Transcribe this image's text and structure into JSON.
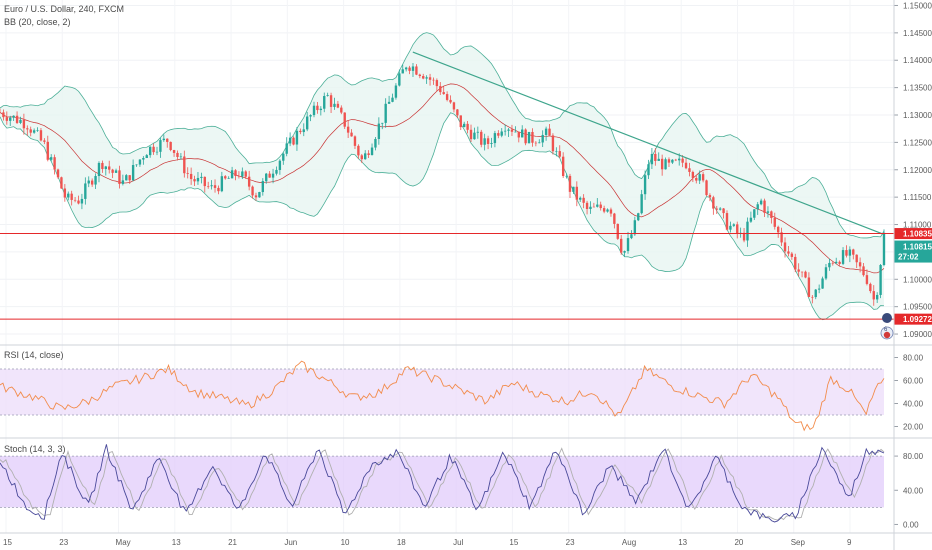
{
  "colors": {
    "up": "#26a69a",
    "down": "#ef5350",
    "bb_band": "#4caf98",
    "bb_mid": "#c83232",
    "bb_fill": "#e7f5f1",
    "trendline": "#3ea58c",
    "hline": "#e5282a",
    "price_tag_green": "#26a69a",
    "rsi_line": "#f28c4c",
    "rsi_fill": "#ecdcfa",
    "stoch_fill": "#e2ccfb",
    "stoch_k": "#4a4a9a",
    "stoch_d": "#b0b0b0"
  },
  "chart_data": [
    {
      "type": "candlestick",
      "title": "Euro / U.S. Dollar, 240, FXCM",
      "indicator": "BB (20, close, 2)",
      "x_tick_labels": [
        "15",
        "23",
        "May",
        "13",
        "21",
        "Jun",
        "10",
        "18",
        "Jul",
        "15",
        "23",
        "Aug",
        "13",
        "20",
        "Sep",
        "9"
      ],
      "y_tick_labels": [
        "1.15000",
        "1.14500",
        "1.14000",
        "1.13500",
        "1.13000",
        "1.12500",
        "1.12000",
        "1.11500",
        "1.11000",
        "1.10500",
        "1.10000",
        "1.09500",
        "1.09000"
      ],
      "ylim": [
        1.088,
        1.151
      ],
      "price_path": [
        {
          "t": 0,
          "v": 1.1305
        },
        {
          "t": 0.03,
          "v": 1.1285
        },
        {
          "t": 0.05,
          "v": 1.1245
        },
        {
          "t": 0.075,
          "v": 1.1145
        },
        {
          "t": 0.09,
          "v": 1.1145
        },
        {
          "t": 0.115,
          "v": 1.1215
        },
        {
          "t": 0.14,
          "v": 1.1175
        },
        {
          "t": 0.165,
          "v": 1.1235
        },
        {
          "t": 0.19,
          "v": 1.1255
        },
        {
          "t": 0.215,
          "v": 1.1185
        },
        {
          "t": 0.24,
          "v": 1.1165
        },
        {
          "t": 0.27,
          "v": 1.1195
        },
        {
          "t": 0.29,
          "v": 1.1155
        },
        {
          "t": 0.31,
          "v": 1.1205
        },
        {
          "t": 0.34,
          "v": 1.1275
        },
        {
          "t": 0.37,
          "v": 1.1335
        },
        {
          "t": 0.39,
          "v": 1.1285
        },
        {
          "t": 0.41,
          "v": 1.1215
        },
        {
          "t": 0.43,
          "v": 1.1285
        },
        {
          "t": 0.46,
          "v": 1.1395
        },
        {
          "t": 0.48,
          "v": 1.1375
        },
        {
          "t": 0.5,
          "v": 1.1345
        },
        {
          "t": 0.52,
          "v": 1.1285
        },
        {
          "t": 0.55,
          "v": 1.1245
        },
        {
          "t": 0.57,
          "v": 1.1285
        },
        {
          "t": 0.6,
          "v": 1.1255
        },
        {
          "t": 0.62,
          "v": 1.1265
        },
        {
          "t": 0.645,
          "v": 1.1165
        },
        {
          "t": 0.665,
          "v": 1.1125
        },
        {
          "t": 0.69,
          "v": 1.1135
        },
        {
          "t": 0.705,
          "v": 1.1045
        },
        {
          "t": 0.72,
          "v": 1.1105
        },
        {
          "t": 0.735,
          "v": 1.1225
        },
        {
          "t": 0.755,
          "v": 1.1205
        },
        {
          "t": 0.775,
          "v": 1.1215
        },
        {
          "t": 0.795,
          "v": 1.1175
        },
        {
          "t": 0.82,
          "v": 1.1105
        },
        {
          "t": 0.84,
          "v": 1.1075
        },
        {
          "t": 0.86,
          "v": 1.1145
        },
        {
          "t": 0.88,
          "v": 1.1085
        },
        {
          "t": 0.9,
          "v": 1.1025
        },
        {
          "t": 0.92,
          "v": 1.0965
        },
        {
          "t": 0.94,
          "v": 1.1035
        },
        {
          "t": 0.96,
          "v": 1.1045
        },
        {
          "t": 0.98,
          "v": 1.1005
        },
        {
          "t": 0.99,
          "v": 1.0955
        },
        {
          "t": 1.0,
          "v": 1.1081
        }
      ],
      "horizontal_lines": [
        1.10835,
        1.09272
      ],
      "trendline": [
        {
          "t": 0.467,
          "v": 1.1415
        },
        {
          "t": 1.0,
          "v": 1.1082
        }
      ],
      "price_labels": {
        "hline_top": "1.10835",
        "last_price": "1.10815",
        "countdown": "27:02",
        "hline_bottom": "1.09272"
      }
    },
    {
      "type": "line",
      "title": "RSI (14, close)",
      "y_tick_labels": [
        "80.00",
        "60.00",
        "40.00",
        "20.00"
      ],
      "ylim": [
        10,
        90
      ],
      "band": [
        30,
        70
      ],
      "path": [
        {
          "t": 0,
          "v": 55
        },
        {
          "t": 0.04,
          "v": 45
        },
        {
          "t": 0.07,
          "v": 35
        },
        {
          "t": 0.1,
          "v": 42
        },
        {
          "t": 0.13,
          "v": 55
        },
        {
          "t": 0.16,
          "v": 62
        },
        {
          "t": 0.19,
          "v": 70
        },
        {
          "t": 0.22,
          "v": 50
        },
        {
          "t": 0.25,
          "v": 45
        },
        {
          "t": 0.28,
          "v": 38
        },
        {
          "t": 0.31,
          "v": 52
        },
        {
          "t": 0.34,
          "v": 74
        },
        {
          "t": 0.37,
          "v": 60
        },
        {
          "t": 0.4,
          "v": 45
        },
        {
          "t": 0.43,
          "v": 50
        },
        {
          "t": 0.46,
          "v": 70
        },
        {
          "t": 0.49,
          "v": 62
        },
        {
          "t": 0.52,
          "v": 52
        },
        {
          "t": 0.55,
          "v": 42
        },
        {
          "t": 0.58,
          "v": 58
        },
        {
          "t": 0.61,
          "v": 48
        },
        {
          "t": 0.64,
          "v": 42
        },
        {
          "t": 0.67,
          "v": 52
        },
        {
          "t": 0.7,
          "v": 28
        },
        {
          "t": 0.73,
          "v": 70
        },
        {
          "t": 0.76,
          "v": 55
        },
        {
          "t": 0.79,
          "v": 47
        },
        {
          "t": 0.82,
          "v": 40
        },
        {
          "t": 0.85,
          "v": 65
        },
        {
          "t": 0.88,
          "v": 45
        },
        {
          "t": 0.9,
          "v": 22
        },
        {
          "t": 0.92,
          "v": 18
        },
        {
          "t": 0.94,
          "v": 62
        },
        {
          "t": 0.96,
          "v": 52
        },
        {
          "t": 0.98,
          "v": 30
        },
        {
          "t": 0.99,
          "v": 52
        },
        {
          "t": 1.0,
          "v": 58
        }
      ]
    },
    {
      "type": "line",
      "title": "Stoch (14, 3, 3)",
      "y_tick_labels": [
        "80.00",
        "40.00",
        "0.00"
      ],
      "ylim": [
        -10,
        100
      ],
      "band": [
        20,
        80
      ],
      "path": [
        {
          "t": 0,
          "v": 75
        },
        {
          "t": 0.03,
          "v": 20
        },
        {
          "t": 0.05,
          "v": 10
        },
        {
          "t": 0.07,
          "v": 85
        },
        {
          "t": 0.1,
          "v": 20
        },
        {
          "t": 0.12,
          "v": 90
        },
        {
          "t": 0.15,
          "v": 15
        },
        {
          "t": 0.18,
          "v": 80
        },
        {
          "t": 0.21,
          "v": 10
        },
        {
          "t": 0.24,
          "v": 70
        },
        {
          "t": 0.27,
          "v": 15
        },
        {
          "t": 0.3,
          "v": 85
        },
        {
          "t": 0.33,
          "v": 20
        },
        {
          "t": 0.36,
          "v": 90
        },
        {
          "t": 0.39,
          "v": 10
        },
        {
          "t": 0.42,
          "v": 70
        },
        {
          "t": 0.45,
          "v": 85
        },
        {
          "t": 0.48,
          "v": 20
        },
        {
          "t": 0.51,
          "v": 80
        },
        {
          "t": 0.54,
          "v": 15
        },
        {
          "t": 0.57,
          "v": 85
        },
        {
          "t": 0.6,
          "v": 20
        },
        {
          "t": 0.63,
          "v": 90
        },
        {
          "t": 0.66,
          "v": 10
        },
        {
          "t": 0.69,
          "v": 70
        },
        {
          "t": 0.72,
          "v": 25
        },
        {
          "t": 0.75,
          "v": 90
        },
        {
          "t": 0.78,
          "v": 15
        },
        {
          "t": 0.81,
          "v": 80
        },
        {
          "t": 0.84,
          "v": 20
        },
        {
          "t": 0.87,
          "v": 5
        },
        {
          "t": 0.9,
          "v": 10
        },
        {
          "t": 0.93,
          "v": 90
        },
        {
          "t": 0.96,
          "v": 30
        },
        {
          "t": 0.98,
          "v": 85
        },
        {
          "t": 1.0,
          "v": 88
        }
      ]
    }
  ]
}
